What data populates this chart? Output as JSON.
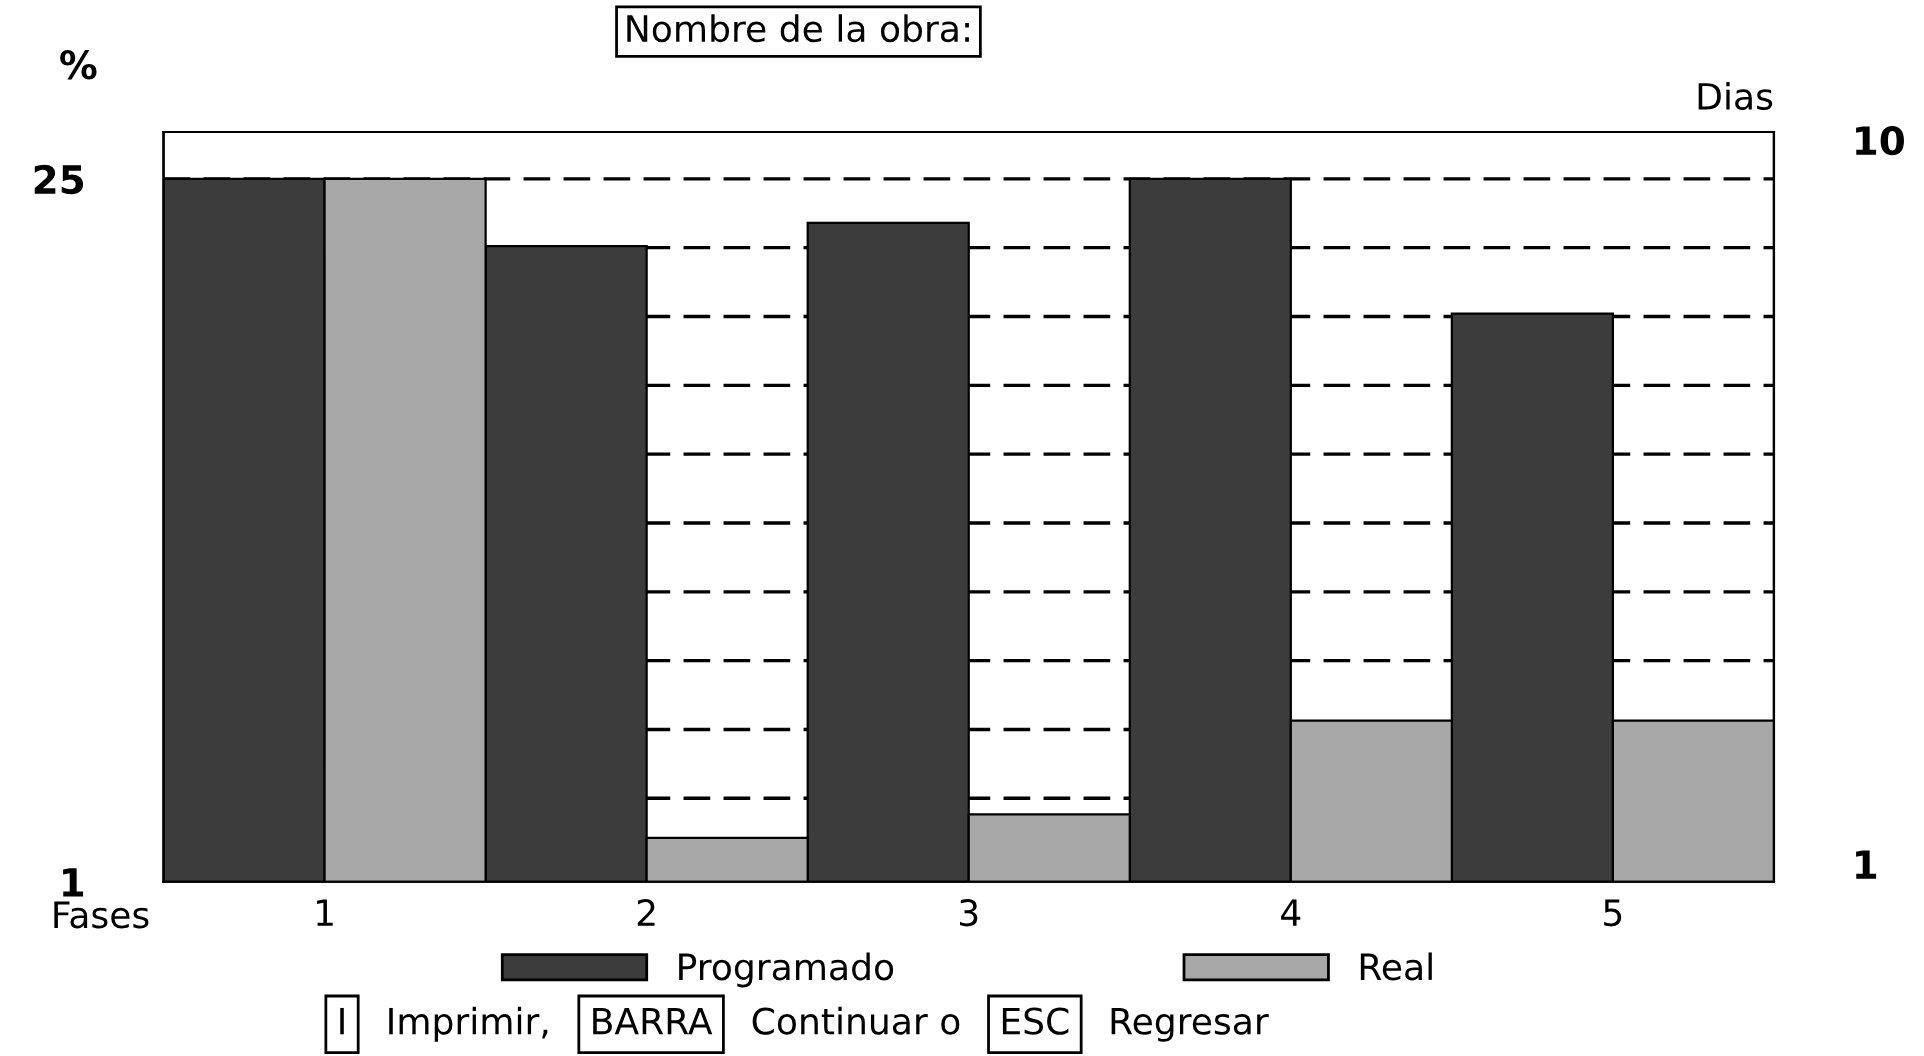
{
  "chart_data": {
    "type": "bar",
    "title": "Nombre de la obra:",
    "xlabel": "Fases",
    "ylabel": "%",
    "y2label": "Dias",
    "categories": [
      "1",
      "2",
      "3",
      "4",
      "5"
    ],
    "series": [
      {
        "name": "Programado",
        "color": "#3c3c3c",
        "values": [
          25,
          22.7,
          23.5,
          25,
          20.4
        ]
      },
      {
        "name": "Real",
        "color": "#a8a8a8",
        "values": [
          25,
          2.5,
          3.3,
          6.5,
          6.5
        ]
      }
    ],
    "ylim": [
      1,
      26.6
    ],
    "yticks": [
      1,
      {
        "value": 3.85,
        "label": null
      },
      {
        "value": 6.2,
        "label": null
      },
      {
        "value": 8.55,
        "label": null
      },
      {
        "value": 10.9,
        "label": null
      },
      {
        "value": 13.25,
        "label": null
      },
      {
        "value": 15.6,
        "label": null
      },
      {
        "value": 17.95,
        "label": null
      },
      {
        "value": 20.3,
        "label": null
      },
      {
        "value": 22.65,
        "label": null
      },
      25
    ],
    "y2lim": [
      0.78,
      10.1
    ],
    "y2ticks": [
      1,
      10
    ],
    "grid": "y",
    "line_style": "dashed",
    "legend": "bottom",
    "annotations": [
      "I",
      "Imprimir,",
      "BARRA",
      "Continuar o",
      "ESC",
      "Regresar"
    ]
  }
}
